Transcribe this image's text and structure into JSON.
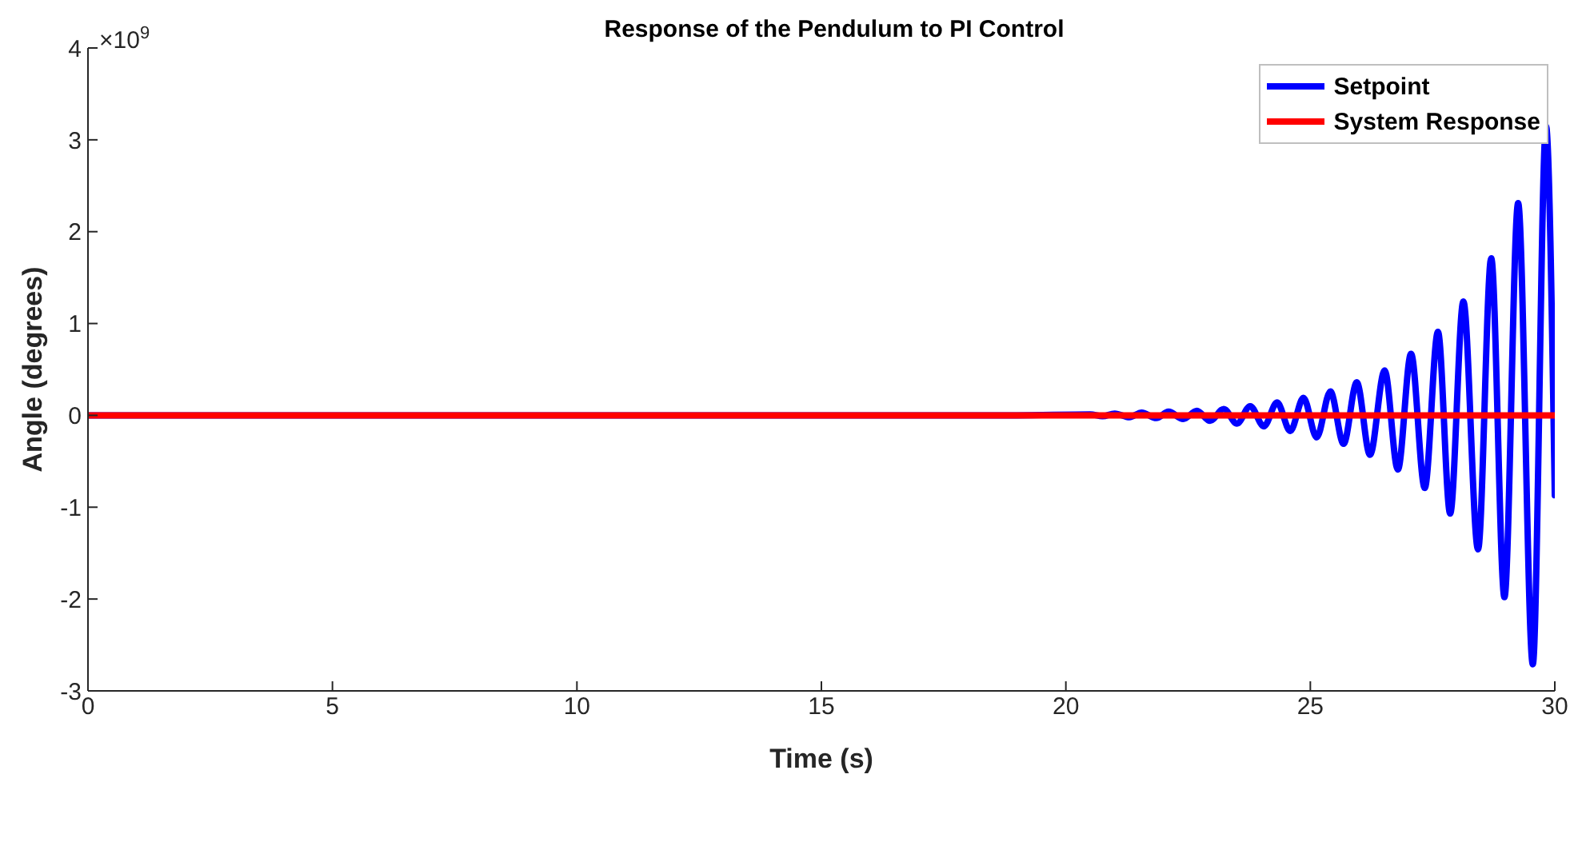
{
  "chart_data": {
    "type": "line",
    "title": "Response of the Pendulum to PI Control",
    "xlabel": "Time (s)",
    "ylabel": "Angle (degrees)",
    "annotations": [
      "×10$^{9}$"
    ],
    "xlim": [
      0,
      30
    ],
    "xticks": [
      0,
      5,
      10,
      15,
      20,
      25,
      30
    ],
    "ylim": [
      -3,
      4
    ],
    "yticks": [
      -3,
      -2,
      -1,
      0,
      1,
      2,
      3,
      4
    ],
    "grid": false,
    "legend": "top right",
    "marker": "none",
    "line_style": "solid",
    "series": [
      {
        "name": "Setpoint",
        "color": "#0000ff",
        "x": [
          0,
          19,
          20.5,
          20.75,
          21.0,
          21.3,
          21.55,
          21.85,
          22.1,
          22.4,
          22.68,
          22.95,
          23.23,
          23.5,
          23.77,
          24.05,
          24.32,
          24.59,
          24.86,
          25.13,
          25.41,
          25.68,
          25.95,
          26.22,
          26.52,
          26.79,
          27.06,
          27.34,
          27.61,
          27.86,
          28.13,
          28.43,
          28.7,
          28.97,
          29.25,
          29.55,
          29.82,
          30
        ],
        "values": [
          0,
          0,
          0.01,
          -0.01,
          0.02,
          -0.02,
          0.03,
          -0.03,
          0.04,
          -0.04,
          0.05,
          -0.06,
          0.07,
          -0.09,
          0.1,
          -0.12,
          0.14,
          -0.17,
          0.19,
          -0.24,
          0.26,
          -0.31,
          0.36,
          -0.43,
          0.49,
          -0.59,
          0.67,
          -0.79,
          0.91,
          -1.07,
          1.24,
          -1.46,
          1.71,
          -1.98,
          2.31,
          -2.71,
          3.15,
          -0.87
        ]
      },
      {
        "name": "System Response",
        "color": "#ff0000",
        "x": [
          0,
          30
        ],
        "values": [
          0,
          0
        ]
      }
    ]
  }
}
